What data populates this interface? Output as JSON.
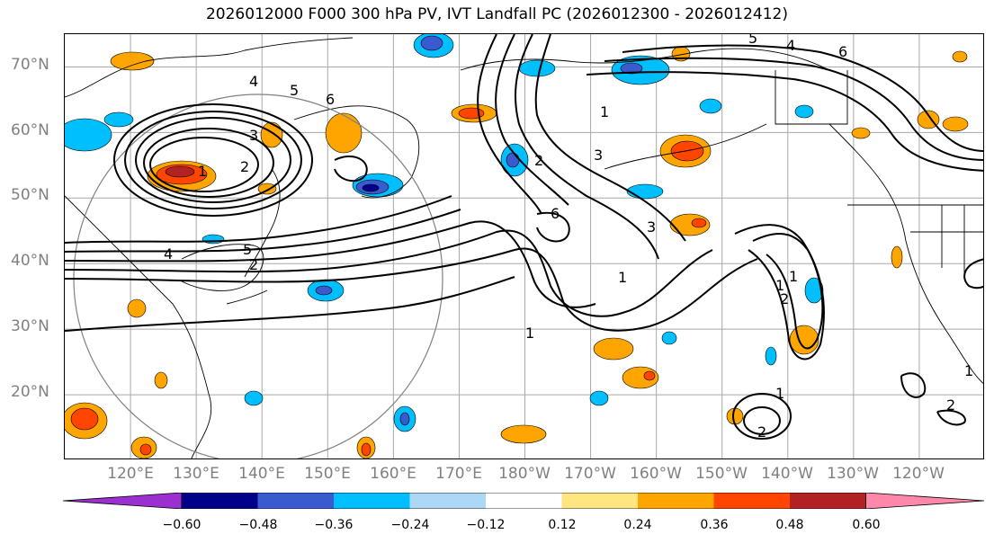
{
  "title": "2026012000 F000 300 hPa PV, IVT Landfall PC (2026012300 - 2026012412)",
  "map": {
    "lat_labels": [
      "70°N",
      "60°N",
      "50°N",
      "40°N",
      "30°N",
      "20°N"
    ],
    "lon_labels": [
      "120°E",
      "130°E",
      "140°E",
      "150°E",
      "160°E",
      "170°E",
      "180°W",
      "170°W",
      "160°W",
      "150°W",
      "140°W",
      "130°W",
      "120°W"
    ],
    "lat_range": [
      10,
      75
    ],
    "lon_range_east": [
      110,
      250
    ],
    "contour_labels": [
      "1",
      "2",
      "3",
      "4",
      "5",
      "6",
      "1",
      "2",
      "3",
      "4",
      "5",
      "6",
      "1",
      "2",
      "1",
      "3",
      "6",
      "1",
      "2",
      "4",
      "5",
      "1",
      "2",
      "1",
      "1",
      "2"
    ]
  },
  "colorbar": {
    "tick_labels": [
      "−0.60",
      "−0.48",
      "−0.36",
      "−0.24",
      "−0.12",
      "0.12",
      "0.24",
      "0.36",
      "0.48",
      "0.60"
    ],
    "colors": [
      "#9b30d0",
      "#00008b",
      "#3a5bcf",
      "#00bfff",
      "#add8f5",
      "#ffffff",
      "#ffe680",
      "#ffa500",
      "#ff4500",
      "#b22222",
      "#ff88aa"
    ]
  }
}
